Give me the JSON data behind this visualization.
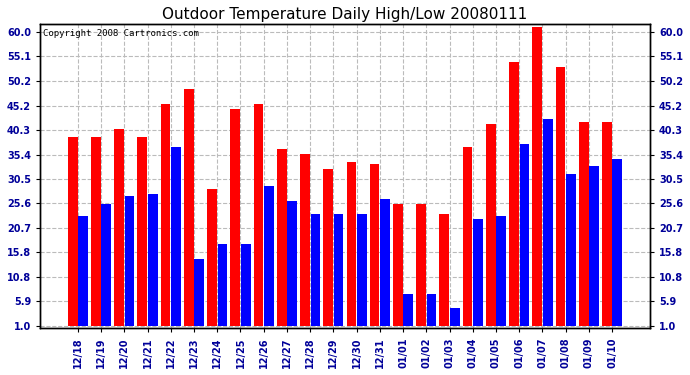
{
  "title": "Outdoor Temperature Daily High/Low 20080111",
  "copyright": "Copyright 2008 Cartronics.com",
  "dates": [
    "12/18",
    "12/19",
    "12/20",
    "12/21",
    "12/22",
    "12/23",
    "12/24",
    "12/25",
    "12/26",
    "12/27",
    "12/28",
    "12/29",
    "12/30",
    "12/31",
    "01/01",
    "01/02",
    "01/03",
    "01/04",
    "01/05",
    "01/06",
    "01/07",
    "01/08",
    "01/09",
    "01/10"
  ],
  "highs": [
    38.0,
    38.0,
    39.5,
    38.0,
    44.5,
    47.5,
    27.5,
    43.5,
    44.5,
    35.5,
    34.5,
    31.5,
    33.0,
    32.5,
    24.5,
    24.5,
    22.5,
    36.0,
    40.5,
    53.0,
    60.0,
    52.0,
    41.0,
    41.0
  ],
  "lows": [
    22.0,
    24.5,
    26.0,
    26.5,
    36.0,
    13.5,
    16.5,
    16.5,
    28.0,
    25.0,
    22.5,
    22.5,
    22.5,
    25.5,
    6.5,
    6.5,
    3.5,
    21.5,
    22.0,
    36.5,
    41.5,
    30.5,
    32.0,
    33.5
  ],
  "high_color": "#ff0000",
  "low_color": "#0000ff",
  "bg_color": "#ffffff",
  "grid_color": "#bbbbbb",
  "yticks": [
    1.0,
    5.9,
    10.8,
    15.8,
    20.7,
    25.6,
    30.5,
    35.4,
    40.3,
    45.2,
    50.2,
    55.1,
    60.0
  ],
  "ymin": 1.0,
  "ymax": 61.5,
  "title_fontsize": 11,
  "tick_fontsize": 7,
  "copyright_fontsize": 6.5
}
